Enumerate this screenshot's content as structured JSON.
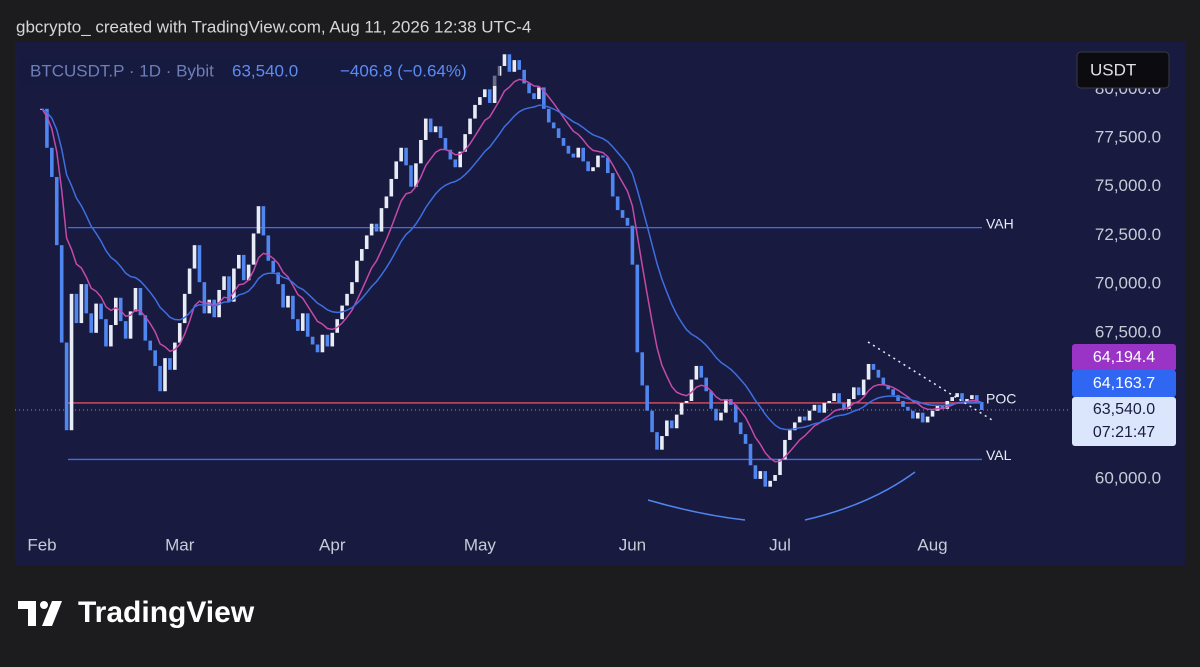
{
  "chart_data": {
    "type": "candlestick",
    "header": "gbcrypto_ created with TradingView.com, Aug 11, 2026 12:38 UTC-4",
    "symbol": "BTCUSDT.P · 1D · Bybit",
    "last_price_label": "63,540.0",
    "change_label": "−406.8 (−0.64%)",
    "currency": "USDT",
    "countdown": "07:21:47",
    "brand": "TradingView",
    "up_color": "#e8ecf5",
    "down_color": "#4f86f0",
    "categories": [
      "Feb",
      null,
      null,
      null,
      null,
      null,
      null,
      null,
      null,
      null,
      null,
      null,
      null,
      null,
      null,
      null,
      null,
      null,
      null,
      null,
      null,
      null,
      null,
      null,
      null,
      null,
      null,
      null,
      "Mar",
      null,
      null,
      null,
      null,
      null,
      null,
      null,
      null,
      null,
      null,
      null,
      null,
      null,
      null,
      null,
      null,
      null,
      null,
      null,
      null,
      null,
      null,
      null,
      null,
      null,
      null,
      null,
      null,
      null,
      null,
      "Apr",
      null,
      null,
      null,
      null,
      null,
      null,
      null,
      null,
      null,
      null,
      null,
      null,
      null,
      null,
      null,
      null,
      null,
      null,
      null,
      null,
      null,
      null,
      null,
      null,
      null,
      null,
      null,
      null,
      null,
      "May",
      null,
      null,
      null,
      null,
      null,
      null,
      null,
      null,
      null,
      null,
      null,
      null,
      null,
      null,
      null,
      null,
      null,
      null,
      null,
      null,
      null,
      null,
      null,
      null,
      null,
      null,
      null,
      null,
      null,
      null,
      "Jun",
      null,
      null,
      null,
      null,
      null,
      null,
      null,
      null,
      null,
      null,
      null,
      null,
      null,
      null,
      null,
      null,
      null,
      null,
      null,
      null,
      null,
      null,
      null,
      null,
      null,
      null,
      null,
      null,
      null,
      "Jul",
      null,
      null,
      null,
      null,
      null,
      null,
      null,
      null,
      null,
      null,
      null,
      null,
      null,
      null,
      null,
      null,
      null,
      null,
      null,
      null,
      null,
      null,
      null,
      null,
      null,
      null,
      null,
      null,
      null,
      null,
      "Aug",
      null,
      null,
      null,
      null,
      null,
      null,
      null,
      null,
      null,
      null
    ],
    "close": [
      79000,
      77000,
      75500,
      72000,
      67000,
      62500,
      69500,
      68000,
      70000,
      68500,
      67500,
      69000,
      68200,
      66800,
      67900,
      69300,
      68100,
      67200,
      68600,
      69800,
      68400,
      67100,
      66600,
      65800,
      64500,
      66200,
      65600,
      67000,
      68000,
      69500,
      70800,
      72000,
      70100,
      68500,
      69200,
      68300,
      69700,
      70400,
      69100,
      70800,
      71500,
      70200,
      71000,
      72600,
      74000,
      72500,
      71200,
      70600,
      70000,
      68800,
      69400,
      68200,
      67600,
      68500,
      67300,
      66900,
      66500,
      67400,
      66800,
      67500,
      68200,
      68900,
      69500,
      70100,
      71200,
      71800,
      72500,
      73100,
      72700,
      73900,
      74500,
      75400,
      76300,
      77000,
      76100,
      75000,
      76200,
      77400,
      78500,
      77800,
      78100,
      77500,
      76900,
      76400,
      76000,
      76800,
      77700,
      78500,
      79200,
      79600,
      80000,
      79300,
      80700,
      81200,
      81800,
      80900,
      81500,
      81000,
      80300,
      79800,
      79500,
      80100,
      79000,
      78300,
      78000,
      77500,
      77100,
      76700,
      76500,
      77000,
      76300,
      75800,
      76000,
      76600,
      76500,
      75700,
      74500,
      73800,
      73400,
      73000,
      71000,
      66500,
      64800,
      63500,
      62400,
      61500,
      62200,
      63000,
      62600,
      63300,
      63900,
      64000,
      65100,
      65800,
      65200,
      64500,
      63600,
      63000,
      63400,
      64100,
      63800,
      62900,
      62300,
      61800,
      60700,
      60000,
      60400,
      59600,
      59900,
      60200,
      61000,
      62000,
      62500,
      62900,
      63200,
      63000,
      63500,
      63800,
      63400,
      63900,
      64000,
      64400,
      63900,
      63600,
      64100,
      64700,
      64300,
      65100,
      65900,
      65600,
      65200,
      64800,
      64600,
      64300,
      64000,
      63700,
      63500,
      63100,
      63400,
      62900,
      63200,
      63500,
      63800,
      63600,
      64000,
      64200,
      64400,
      64000,
      64100,
      64300,
      63946.8,
      63540
    ],
    "ylim": [
      55580,
      82430
    ],
    "yticks": [
      {
        "value": 80000,
        "label": "80,000.0"
      },
      {
        "value": 77500,
        "label": "77,500.0"
      },
      {
        "value": 75000,
        "label": "75,000.0"
      },
      {
        "value": 72500,
        "label": "72,500.0"
      },
      {
        "value": 70000,
        "label": "70,000.0"
      },
      {
        "value": 67500,
        "label": "67,500.0"
      },
      {
        "value": 60000,
        "label": "60,000.0"
      }
    ],
    "levels": [
      {
        "name": "VAH",
        "value": 72900,
        "color": "#3f6fe8"
      },
      {
        "name": "POC",
        "value": 63900,
        "color": "#e05060"
      },
      {
        "name": "VAL",
        "value": 61000,
        "color": "#3f6fe8"
      }
    ],
    "moving_averages": [
      {
        "label": "64,194.4",
        "color": "#c44aa8"
      },
      {
        "label": "64,163.7",
        "color": "#3d6fe0"
      }
    ]
  }
}
